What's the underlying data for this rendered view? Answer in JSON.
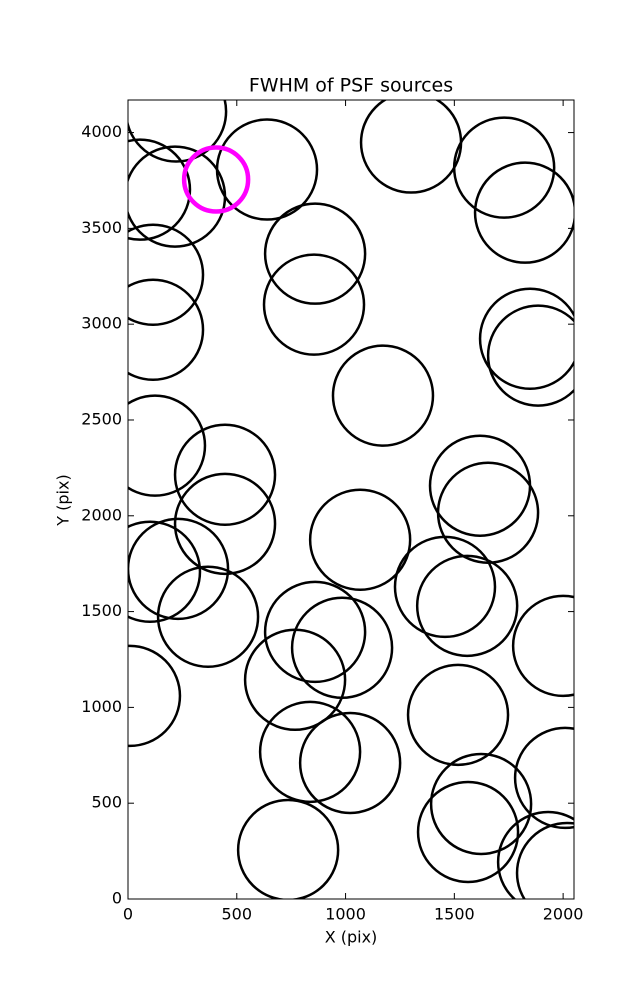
{
  "chart_data": {
    "type": "scatter",
    "title": "FWHM of PSF sources",
    "xlabel": "X (pix)",
    "ylabel": "Y (pix)",
    "xlim": [
      0,
      2050
    ],
    "ylim": [
      0,
      4170
    ],
    "xticks": [
      0,
      500,
      1000,
      1500,
      2000
    ],
    "yticks": [
      0,
      500,
      1000,
      1500,
      2000,
      2500,
      3000,
      3500,
      4000
    ],
    "grid": false,
    "series": [
      {
        "color": "#000000",
        "marker": "open-circle",
        "marker_size": 50,
        "line_width": 2.5,
        "x": [
          221,
          55,
          216,
          639,
          860,
          855,
          1301,
          1729,
          1825,
          115,
          115,
          1848,
          1885,
          1172,
          124,
          446,
          446,
          1618,
          1655,
          1067,
          101,
          230,
          368,
          1457,
          1559,
          860,
          984,
          2000,
          768,
          9,
          1517,
          837,
          1021,
          2009,
          1623,
          1563,
          1931,
          2018,
          736
        ],
        "values": [
          4110,
          3702,
          3666,
          3807,
          3368,
          3102,
          3948,
          3817,
          3582,
          3258,
          2971,
          2924,
          2836,
          2627,
          2366,
          2214,
          1958,
          2157,
          2016,
          1875,
          1708,
          1723,
          1473,
          1629,
          1530,
          1394,
          1311,
          1321,
          1144,
          1060,
          961,
          768,
          710,
          632,
          496,
          350,
          193,
          136,
          256
        ]
      },
      {
        "color": "#ff00ff",
        "marker": "open-circle",
        "marker_size": 32,
        "line_width": 4.5,
        "x": [
          405
        ],
        "values": [
          3755
        ]
      }
    ]
  }
}
